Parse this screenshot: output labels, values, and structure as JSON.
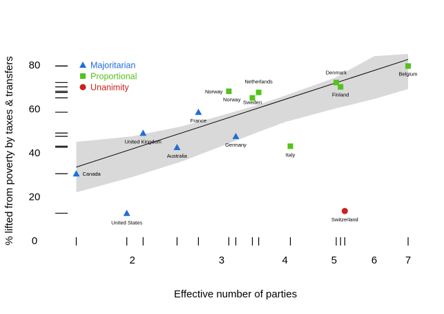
{
  "chart_data": {
    "type": "scatter",
    "title": "",
    "xlabel": "Effective number of parties",
    "ylabel": "% lifted from poverty by taxes & transfers",
    "x_scale": "log",
    "xlim": [
      1.5,
      7.2
    ],
    "ylim": [
      0,
      85
    ],
    "x_ticks": [
      2,
      3,
      4,
      5,
      6,
      7
    ],
    "y_ticks": [
      0,
      20,
      40,
      60,
      80
    ],
    "legend_position": "top-left",
    "grid": false,
    "colors": {
      "Majoritarian": "#1f6fd6",
      "Proportional": "#55c21b",
      "Unanimity": "#cc1f1f"
    },
    "marker_shapes": {
      "Majoritarian": "triangle",
      "Proportional": "square",
      "Unanimity": "circle"
    },
    "series": [
      {
        "name": "Majoritarian",
        "points": [
          {
            "label": "Canada",
            "x": 1.55,
            "y": 30.5
          },
          {
            "label": "United States",
            "x": 1.95,
            "y": 12.5
          },
          {
            "label": "United Kingdom",
            "x": 2.1,
            "y": 49
          },
          {
            "label": "Australia",
            "x": 2.45,
            "y": 42.5
          },
          {
            "label": "France",
            "x": 2.7,
            "y": 58.5
          },
          {
            "label": "Germany",
            "x": 3.2,
            "y": 47.5
          }
        ]
      },
      {
        "name": "Proportional",
        "points": [
          {
            "label": "Norway",
            "x": 3.1,
            "y": 68
          },
          {
            "label": "Norway",
            "x": 3.45,
            "y": 65
          },
          {
            "label": "Netherlands",
            "x": 3.55,
            "y": 67.5
          },
          {
            "label": "Sweden",
            "x": 3.55,
            "y": 67.5
          },
          {
            "label": "Italy",
            "x": 4.1,
            "y": 43
          },
          {
            "label": "Denmark",
            "x": 5.05,
            "y": 72
          },
          {
            "label": "Finland",
            "x": 5.15,
            "y": 70
          },
          {
            "label": "Belgium",
            "x": 7.0,
            "y": 79.5
          }
        ]
      },
      {
        "name": "Unanimity",
        "points": [
          {
            "label": "Switzerland",
            "x": 5.25,
            "y": 13.5
          }
        ]
      }
    ],
    "fit_line": {
      "x": [
        1.55,
        7.0
      ],
      "y": [
        33.5,
        82.5
      ]
    },
    "confidence_band": {
      "x": [
        1.55,
        2.0,
        2.5,
        3.0,
        3.5,
        4.0,
        5.0,
        6.0,
        7.0
      ],
      "upper": [
        45,
        47.5,
        52,
        57,
        61.5,
        66,
        74,
        84,
        95
      ],
      "lower": [
        22,
        29,
        36,
        43,
        49,
        54,
        60,
        64.5,
        69
      ]
    },
    "rug_x": [
      1.55,
      1.95,
      2.1,
      2.45,
      2.7,
      3.1,
      3.2,
      3.45,
      3.55,
      4.1,
      5.05,
      5.15,
      5.25,
      7.0
    ],
    "rug_y": [
      12.5,
      30.5,
      42.5,
      43,
      47.5,
      49,
      58.5,
      65,
      67.5,
      68,
      70,
      72,
      79.5
    ]
  }
}
